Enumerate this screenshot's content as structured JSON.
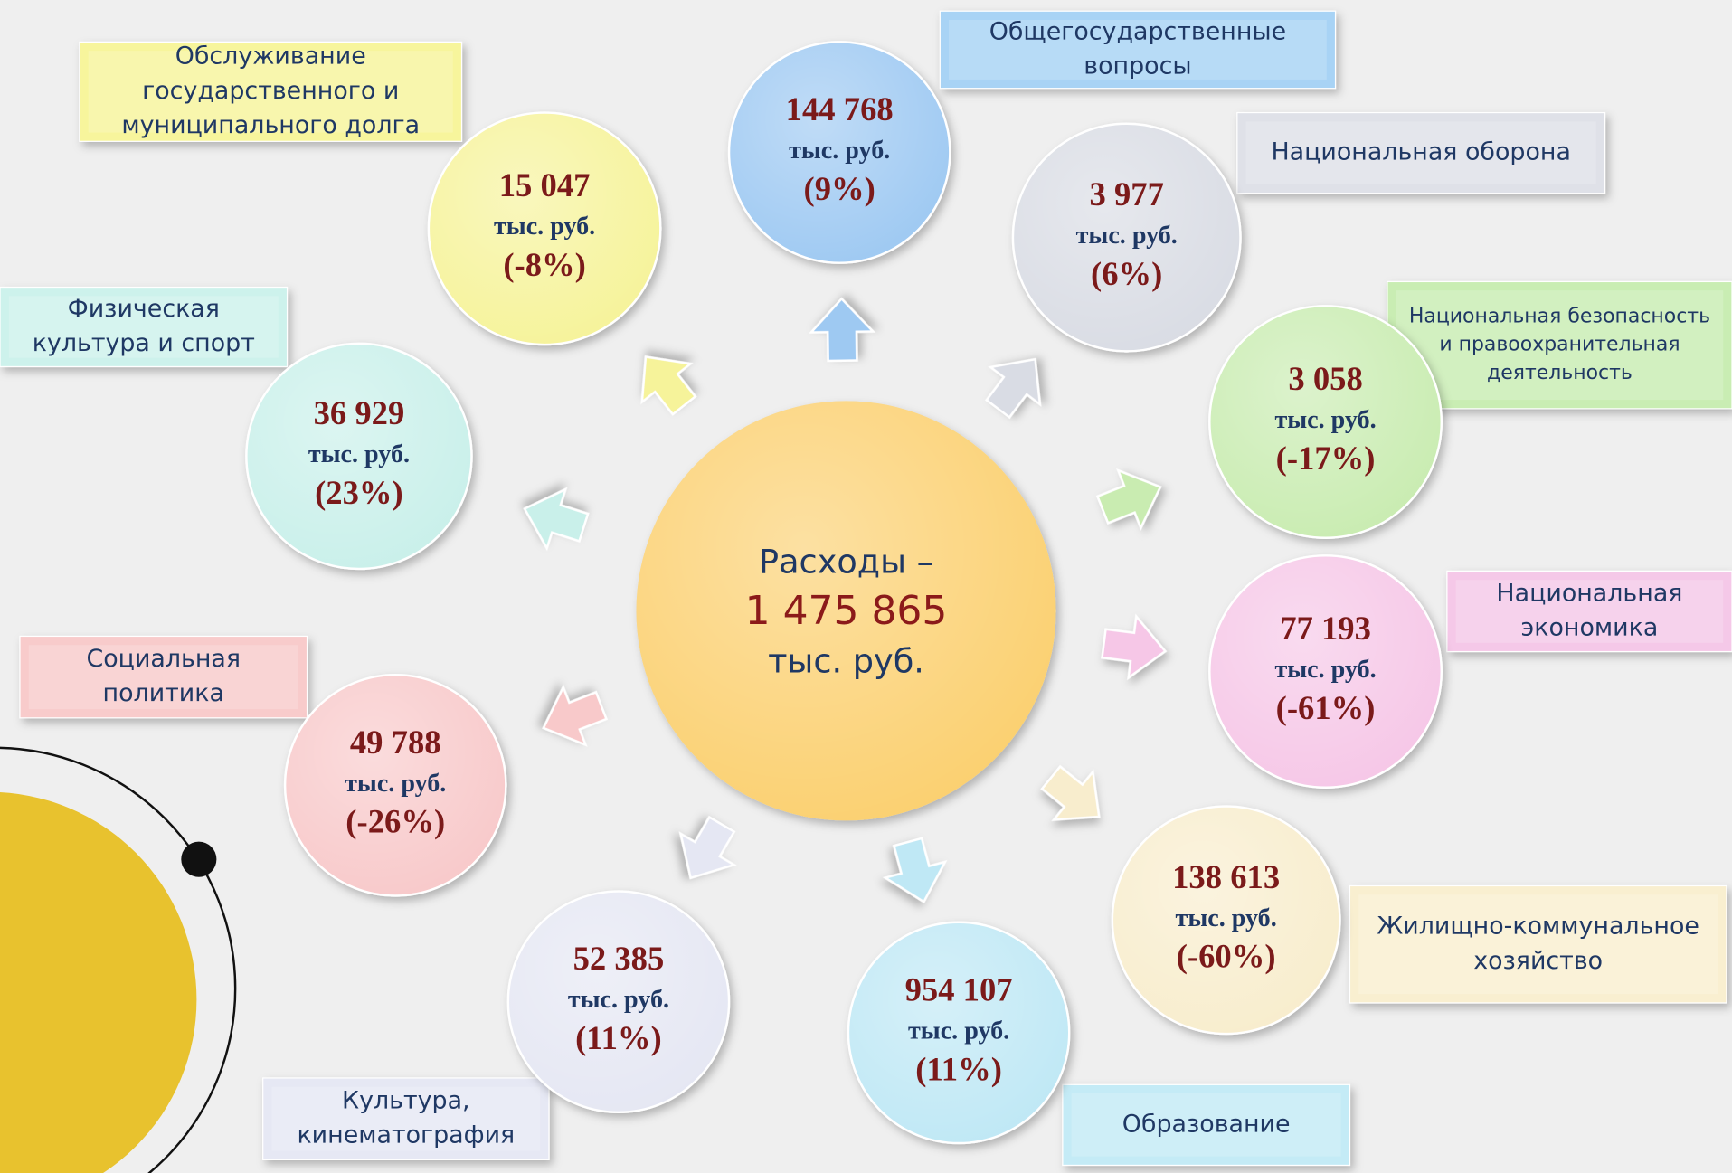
{
  "center": {
    "label": "Расходы –",
    "value": "1 475 865",
    "unit": "тыс. руб."
  },
  "items": [
    {
      "label": [
        "Обслуживание",
        "государственного и",
        "муниципального долга"
      ],
      "value": "15 047",
      "unit": "тыс. руб.",
      "change": "(-8%)"
    },
    {
      "label": [
        "Общегосударственные",
        "вопросы"
      ],
      "value": "144 768",
      "unit": "тыс. руб.",
      "change": "(9%)"
    },
    {
      "label": [
        "Национальная оборона"
      ],
      "value": "3 977",
      "unit": "тыс. руб.",
      "change": "(6%)"
    },
    {
      "label": [
        "Национальная безопасность",
        "и правоохранительная",
        "деятельность"
      ],
      "value": "3 058",
      "unit": "тыс. руб.",
      "change": "(-17%)"
    },
    {
      "label": [
        "Национальная",
        "экономика"
      ],
      "value": "77 193",
      "unit": "тыс. руб.",
      "change": "(-61%)"
    },
    {
      "label": [
        "Жилищно-коммунальное",
        "хозяйство"
      ],
      "value": "138 613",
      "unit": "тыс. руб.",
      "change": "(-60%)"
    },
    {
      "label": [
        "Образование"
      ],
      "value": "954 107",
      "unit": "тыс. руб.",
      "change": "(11%)"
    },
    {
      "label": [
        "Культура,",
        "кинематография"
      ],
      "value": "52 385",
      "unit": "тыс. руб.",
      "change": "(11%)"
    },
    {
      "label": [
        "Социальная",
        "политика"
      ],
      "value": "49 788",
      "unit": "тыс. руб.",
      "change": "(-26%)"
    },
    {
      "label": [
        "Физическая",
        "культура и спорт"
      ],
      "value": "36 929",
      "unit": "тыс. руб.",
      "change": "(23%)"
    }
  ]
}
